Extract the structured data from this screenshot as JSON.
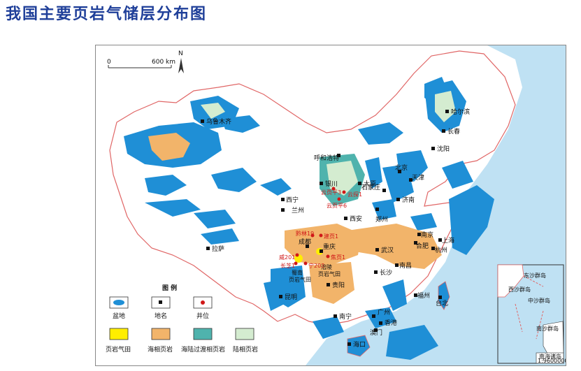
{
  "title": "我国主要页岩气储层分布图",
  "scale": {
    "zero": "0",
    "distance": "600 km",
    "north": "N"
  },
  "colors": {
    "sea": "#bfe1f3",
    "basin": "#1f8fd6",
    "marine_shale": "#f2b46a",
    "transitional_shale": "#4fb3ad",
    "continental_shale": "#d4ecd0",
    "shale_gas_field": "#ffee00",
    "border": "#e06666"
  },
  "legend": {
    "title": "图 例",
    "items": [
      {
        "key": "basin",
        "label": "盆地"
      },
      {
        "key": "place",
        "label": "地名"
      },
      {
        "key": "well",
        "label": "井位"
      },
      {
        "key": "gas_field",
        "label": "页岩气田"
      },
      {
        "key": "marine",
        "label": "海相页岩"
      },
      {
        "key": "transitional",
        "label": "海陆过渡相页岩"
      },
      {
        "key": "continental",
        "label": "陆相页岩"
      }
    ]
  },
  "cities": {
    "wulumuqi": "乌鲁木齐",
    "haerbin": "哈尔滨",
    "changchun": "长春",
    "shenyang": "沈阳",
    "huhehaote": "呼和浩特",
    "beijing": "北京",
    "tianjin": "天津",
    "shijiazhuang": "石家庄",
    "jinan": "济南",
    "taiyuan": "太原",
    "yinchuan": "银川",
    "xining": "西宁",
    "lanzhou": "兰州",
    "xian": "西安",
    "zhengzhou": "郑州",
    "lasa": "拉萨",
    "chengdu": "成都",
    "chongqing": "重庆",
    "wuhan": "武汉",
    "hefei": "合肥",
    "nanjing": "南京",
    "shanghai": "上海",
    "hangzhou": "杭州",
    "changsha": "长沙",
    "nanchang": "南昌",
    "guiyang": "贵阳",
    "kunming": "昆明",
    "nanning": "南宁",
    "guangzhou": "广州",
    "xianggang": "香港",
    "aomen": "澳门",
    "fuzhou": "福州",
    "taibei": "台北",
    "haikou": "海口"
  },
  "wells": {
    "yunyeping3": "云页平3",
    "yuntan1": "云探1",
    "yunyeping6": "云页平6",
    "jianye1": "建页1",
    "jiaoye1": "焦页1",
    "wei201": "威201",
    "ning203": "宁203",
    "changzhi": "长芝1",
    "qianlin": "黔林19"
  },
  "regions": {
    "shunan": "蜀南",
    "shunan2": "页岩气田",
    "fuling": "涪陵",
    "fuling2": "页岩气田"
  },
  "inset": {
    "dongsha": "东沙群岛",
    "xisha": "西沙群岛",
    "zhongsha": "中沙群岛",
    "nansha": "南沙群岛",
    "title": "南海诸岛",
    "scale": "1:96000000"
  }
}
